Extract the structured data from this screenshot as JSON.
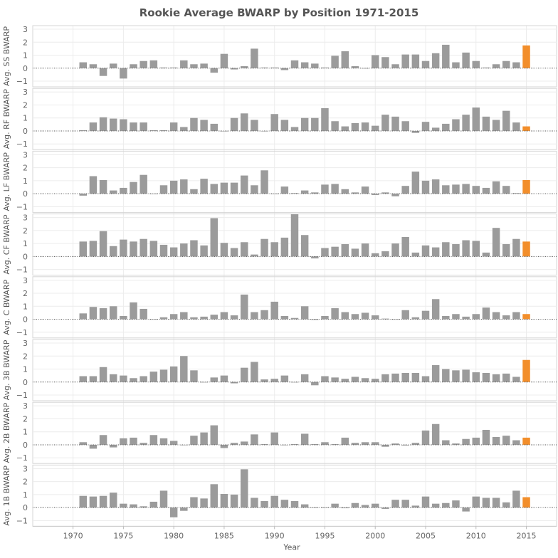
{
  "chart_data": {
    "type": "bar",
    "title": "Rookie Average BWARP by Position 1971-2015",
    "xlabel": "Year",
    "x_ticks": [
      1970,
      1975,
      1980,
      1985,
      1990,
      1995,
      2000,
      2005,
      2010,
      2015
    ],
    "xlim": [
      1966,
      2018
    ],
    "years": [
      1971,
      1972,
      1973,
      1974,
      1975,
      1976,
      1977,
      1978,
      1979,
      1980,
      1981,
      1982,
      1983,
      1984,
      1985,
      1986,
      1987,
      1988,
      1989,
      1990,
      1991,
      1992,
      1993,
      1994,
      1995,
      1996,
      1997,
      1998,
      1999,
      2000,
      2001,
      2002,
      2003,
      2004,
      2005,
      2006,
      2007,
      2008,
      2009,
      2010,
      2011,
      2012,
      2013,
      2014,
      2015
    ],
    "ylim": [
      -1,
      3
    ],
    "y_ticks": [
      -1,
      0,
      1,
      2,
      3
    ],
    "grid": true,
    "colors": {
      "bar": "#9b9b9b",
      "highlight": "#f28e2b",
      "grid": "#ececec",
      "zero_line": "#555555"
    },
    "highlight_year": 2015,
    "series": [
      {
        "name": "SS",
        "ylabel": "Avg. SS BWARP",
        "values": [
          0.45,
          0.3,
          -0.6,
          0.35,
          -0.8,
          0.3,
          0.55,
          0.6,
          0.05,
          0.05,
          0.6,
          0.3,
          0.35,
          -0.35,
          1.1,
          -0.1,
          0.15,
          1.5,
          0.05,
          0.05,
          -0.15,
          0.6,
          0.45,
          0.35,
          0.05,
          0.95,
          1.3,
          0.15,
          0.0,
          1.0,
          0.85,
          0.3,
          1.05,
          1.05,
          0.55,
          1.15,
          1.8,
          0.45,
          1.2,
          0.55,
          0.05,
          0.3,
          0.55,
          0.45,
          1.75
        ]
      },
      {
        "name": "RF",
        "ylabel": "Avg. RF BWARP",
        "values": [
          0.05,
          0.65,
          1.05,
          0.95,
          0.9,
          0.65,
          0.65,
          0.05,
          0.05,
          0.65,
          0.3,
          1.0,
          0.85,
          0.55,
          0.0,
          1.0,
          1.35,
          0.85,
          0.0,
          1.3,
          0.85,
          0.3,
          1.0,
          1.0,
          1.75,
          0.75,
          0.35,
          0.6,
          0.65,
          0.4,
          1.25,
          1.1,
          0.75,
          -0.15,
          0.7,
          0.25,
          0.55,
          0.9,
          1.25,
          1.8,
          1.1,
          0.85,
          1.55,
          0.65,
          0.35
        ]
      },
      {
        "name": "LF",
        "ylabel": "Avg. LF BWARP",
        "values": [
          -0.15,
          1.35,
          1.05,
          0.25,
          0.45,
          0.9,
          1.45,
          0.0,
          0.65,
          1.0,
          1.1,
          0.35,
          1.15,
          0.75,
          0.85,
          0.85,
          1.4,
          0.65,
          1.8,
          0.0,
          0.55,
          0.05,
          0.25,
          0.1,
          0.7,
          0.75,
          0.35,
          0.1,
          0.55,
          -0.1,
          0.1,
          -0.2,
          0.6,
          1.7,
          1.0,
          1.1,
          0.65,
          0.7,
          0.75,
          0.6,
          0.45,
          0.95,
          0.6,
          0.05,
          1.05
        ]
      },
      {
        "name": "CF",
        "ylabel": "Avg. CF BWARP",
        "values": [
          1.15,
          1.2,
          1.95,
          0.8,
          1.3,
          1.15,
          1.35,
          1.2,
          0.9,
          0.7,
          1.0,
          1.25,
          0.85,
          2.95,
          1.05,
          0.65,
          1.1,
          0.15,
          1.35,
          1.1,
          1.45,
          3.25,
          1.65,
          -0.15,
          0.65,
          0.75,
          0.95,
          0.6,
          1.0,
          0.25,
          0.4,
          1.0,
          1.5,
          0.3,
          0.85,
          0.7,
          1.1,
          0.95,
          1.25,
          1.2,
          0.3,
          2.2,
          0.95,
          1.35,
          1.15
        ]
      },
      {
        "name": "C",
        "ylabel": "Avg. C BWARP",
        "values": [
          0.45,
          0.95,
          0.85,
          1.0,
          0.25,
          1.3,
          0.8,
          0.0,
          0.15,
          0.4,
          0.55,
          0.15,
          0.2,
          0.35,
          0.55,
          0.3,
          1.9,
          0.55,
          0.7,
          1.35,
          0.25,
          0.1,
          1.0,
          -0.05,
          0.25,
          0.85,
          0.55,
          0.4,
          0.5,
          0.3,
          0.05,
          0.0,
          0.7,
          0.15,
          0.65,
          1.55,
          0.25,
          0.4,
          0.2,
          0.4,
          0.9,
          0.55,
          0.3,
          0.55,
          0.4
        ]
      },
      {
        "name": "3B",
        "ylabel": "Avg. 3B BWARP",
        "values": [
          0.45,
          0.45,
          1.15,
          0.6,
          0.5,
          0.3,
          0.45,
          0.8,
          0.95,
          1.2,
          2.0,
          0.9,
          0.0,
          0.35,
          0.5,
          -0.1,
          1.1,
          1.55,
          0.2,
          0.25,
          0.5,
          0.0,
          0.6,
          -0.25,
          0.45,
          0.35,
          0.25,
          0.4,
          0.3,
          0.25,
          0.6,
          0.65,
          0.7,
          0.7,
          0.45,
          1.3,
          1.0,
          0.9,
          0.95,
          0.75,
          0.7,
          0.6,
          0.65,
          0.4,
          1.7
        ]
      },
      {
        "name": "2B",
        "ylabel": "Avg. 2B BWARP",
        "values": [
          0.2,
          -0.3,
          0.75,
          -0.2,
          0.5,
          0.55,
          0.15,
          0.75,
          0.5,
          0.3,
          0.0,
          0.7,
          0.95,
          1.5,
          -0.25,
          0.15,
          0.25,
          0.8,
          0.05,
          0.95,
          0.0,
          0.05,
          0.85,
          0.05,
          0.2,
          0.05,
          0.55,
          0.15,
          0.2,
          0.2,
          -0.15,
          0.1,
          -0.05,
          0.15,
          1.1,
          1.6,
          0.35,
          0.1,
          0.45,
          0.55,
          1.15,
          0.6,
          0.7,
          0.35,
          0.55
        ]
      },
      {
        "name": "1B",
        "ylabel": "Avg. 1B BWARP",
        "values": [
          0.9,
          0.85,
          0.9,
          1.15,
          0.3,
          0.25,
          0.1,
          0.45,
          1.3,
          -0.75,
          -0.25,
          0.8,
          0.7,
          1.8,
          1.05,
          1.0,
          2.95,
          0.75,
          0.5,
          0.9,
          0.6,
          0.5,
          0.25,
          0.0,
          0.0,
          0.3,
          -0.05,
          0.35,
          0.2,
          0.3,
          -0.1,
          0.6,
          0.6,
          0.15,
          0.85,
          0.3,
          0.35,
          0.55,
          -0.3,
          0.85,
          0.75,
          0.75,
          0.4,
          1.3,
          0.8
        ]
      }
    ]
  }
}
